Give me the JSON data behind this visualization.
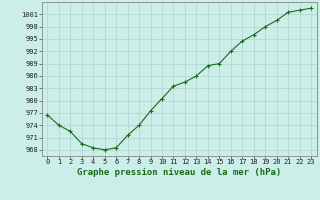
{
  "x": [
    0,
    1,
    2,
    3,
    4,
    5,
    6,
    7,
    8,
    9,
    10,
    11,
    12,
    13,
    14,
    15,
    16,
    17,
    18,
    19,
    20,
    21,
    22,
    23
  ],
  "y": [
    976.5,
    974.0,
    972.5,
    969.5,
    968.5,
    968.0,
    968.5,
    971.5,
    974.0,
    977.5,
    980.5,
    983.5,
    984.5,
    986.0,
    988.5,
    989.0,
    992.0,
    994.5,
    996.0,
    998.0,
    999.5,
    1001.5,
    1002.0,
    1002.5
  ],
  "line_color": "#1a6b1a",
  "marker": "+",
  "marker_color": "#1a6b1a",
  "marker_size": 3,
  "xlabel": "Graphe pression niveau de la mer (hPa)",
  "xlabel_fontsize": 6.5,
  "ylabel_ticks": [
    968,
    971,
    974,
    977,
    980,
    983,
    986,
    989,
    992,
    995,
    998,
    1001
  ],
  "ylim": [
    966.5,
    1004
  ],
  "xlim": [
    -0.5,
    23.5
  ],
  "xticks": [
    0,
    1,
    2,
    3,
    4,
    5,
    6,
    7,
    8,
    9,
    10,
    11,
    12,
    13,
    14,
    15,
    16,
    17,
    18,
    19,
    20,
    21,
    22,
    23
  ],
  "background_color": "#cceee8",
  "grid_color": "#aacccc",
  "tick_fontsize": 5.0,
  "line_width": 0.8
}
